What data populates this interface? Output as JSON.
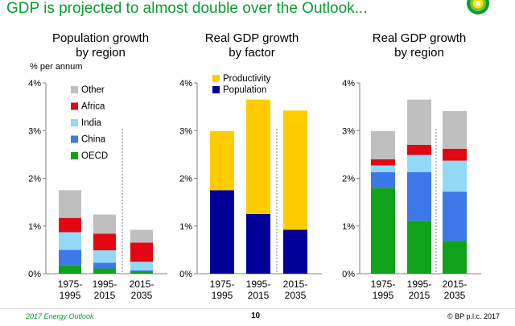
{
  "slide": {
    "title": "GDP is projected to almost double over the Outlook...",
    "footer_left": "2017 Energy Outlook",
    "page_number": "10",
    "footer_right": "© BP p.l.c. 2017"
  },
  "colors": {
    "title_green": "#0a9d2f",
    "Other": "#bfbfbf",
    "Africa": "#e30613",
    "India": "#92d9f5",
    "China": "#3d78e8",
    "OECD": "#10a21a",
    "Productivity": "#ffcc00",
    "Population": "#000099"
  },
  "chart_data": [
    {
      "type": "bar",
      "stacked": true,
      "title": "Population growth\nby region",
      "ylabel": "% per annum",
      "yticks": [
        "0%",
        "1%",
        "2%",
        "3%",
        "4%"
      ],
      "ylim": [
        0,
        4
      ],
      "categories": [
        "1975-\n1995",
        "1995-\n2015",
        "2015-\n2035"
      ],
      "legend_position": "top-left",
      "series": [
        {
          "name": "OECD",
          "values": [
            0.17,
            0.11,
            0.05
          ]
        },
        {
          "name": "China",
          "values": [
            0.33,
            0.12,
            0.02
          ]
        },
        {
          "name": "India",
          "values": [
            0.37,
            0.26,
            0.18
          ]
        },
        {
          "name": "Africa",
          "values": [
            0.3,
            0.35,
            0.4
          ]
        },
        {
          "name": "Other",
          "values": [
            0.58,
            0.4,
            0.27
          ]
        }
      ]
    },
    {
      "type": "bar",
      "stacked": true,
      "title": "Real GDP growth\nby factor",
      "ylabel": "",
      "yticks": [
        "0%",
        "1%",
        "2%",
        "3%",
        "4%"
      ],
      "ylim": [
        0,
        4
      ],
      "categories": [
        "1975-\n1995",
        "1995-\n2015",
        "2015-\n2035"
      ],
      "legend_position": "top-left",
      "series": [
        {
          "name": "Population",
          "values": [
            1.75,
            1.25,
            0.92
          ]
        },
        {
          "name": "Productivity",
          "values": [
            1.24,
            2.4,
            2.5
          ]
        }
      ]
    },
    {
      "type": "bar",
      "stacked": true,
      "title": "Real GDP growth\nby region",
      "ylabel": "",
      "yticks": [
        "0%",
        "1%",
        "2%",
        "3%",
        "4%"
      ],
      "ylim": [
        0,
        4
      ],
      "categories": [
        "1975-\n1995",
        "1995-\n2015",
        "2015-\n2035"
      ],
      "legend_position": "none",
      "series": [
        {
          "name": "OECD",
          "values": [
            1.8,
            1.11,
            0.69
          ]
        },
        {
          "name": "China",
          "values": [
            0.33,
            1.02,
            1.03
          ]
        },
        {
          "name": "India",
          "values": [
            0.14,
            0.36,
            0.65
          ]
        },
        {
          "name": "Africa",
          "values": [
            0.13,
            0.21,
            0.25
          ]
        },
        {
          "name": "Other",
          "values": [
            0.59,
            0.95,
            0.79
          ]
        }
      ]
    }
  ]
}
